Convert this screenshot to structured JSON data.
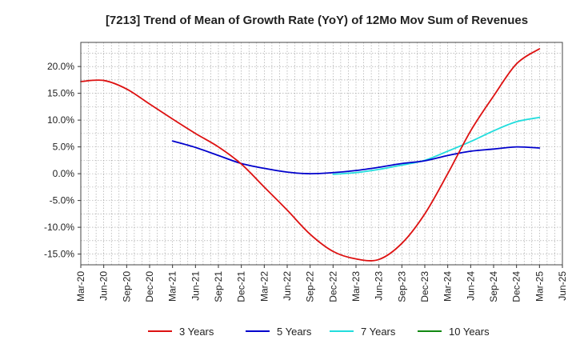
{
  "chart_data": {
    "type": "line",
    "title": "[7213]  Trend of Mean of Growth Rate (YoY) of 12Mo Mov Sum of Revenues",
    "xlabel": "",
    "ylabel": "",
    "ylim": [
      -17,
      24.5
    ],
    "yticks": [
      20,
      15,
      10,
      5,
      0,
      -5,
      -10,
      -15
    ],
    "ytick_labels": [
      "20.0%",
      "15.0%",
      "10.0%",
      "5.0%",
      "0.0%",
      "-5.0%",
      "-10.0%",
      "-15.0%"
    ],
    "x_tick_labels": [
      "Mar-20",
      "Jun-20",
      "Sep-20",
      "Dec-20",
      "Mar-21",
      "Jun-21",
      "Sep-21",
      "Dec-21",
      "Mar-22",
      "Jun-22",
      "Sep-22",
      "Dec-22",
      "Mar-23",
      "Jun-23",
      "Sep-23",
      "Dec-23",
      "Mar-24",
      "Jun-24",
      "Sep-24",
      "Dec-24",
      "Mar-25",
      "Jun-25"
    ],
    "grid": true,
    "legend_position": "bottom",
    "series": [
      {
        "name": "3 Years",
        "color": "#dd1111",
        "points": [
          [
            0,
            17.2
          ],
          [
            1,
            17.4
          ],
          [
            2,
            15.8
          ],
          [
            3,
            13.0
          ],
          [
            4,
            10.2
          ],
          [
            5,
            7.5
          ],
          [
            6,
            5.0
          ],
          [
            7,
            1.8
          ],
          [
            8,
            -2.5
          ],
          [
            9,
            -6.8
          ],
          [
            10,
            -11.3
          ],
          [
            11,
            -14.5
          ],
          [
            12,
            -15.9
          ],
          [
            13,
            -16.0
          ],
          [
            14,
            -13.0
          ],
          [
            15,
            -7.5
          ],
          [
            16,
            0.0
          ],
          [
            17,
            8.0
          ],
          [
            18,
            14.5
          ],
          [
            19,
            20.5
          ],
          [
            20,
            23.3
          ]
        ]
      },
      {
        "name": "5 Years",
        "color": "#0000cc",
        "points": [
          [
            4,
            6.1
          ],
          [
            5,
            4.9
          ],
          [
            6,
            3.4
          ],
          [
            7,
            1.9
          ],
          [
            8,
            1.0
          ],
          [
            9,
            0.3
          ],
          [
            10,
            0.0
          ],
          [
            11,
            0.2
          ],
          [
            12,
            0.6
          ],
          [
            13,
            1.2
          ],
          [
            14,
            1.9
          ],
          [
            15,
            2.4
          ],
          [
            16,
            3.4
          ],
          [
            17,
            4.2
          ],
          [
            18,
            4.6
          ],
          [
            19,
            5.0
          ],
          [
            20,
            4.8
          ]
        ]
      },
      {
        "name": "7 Years",
        "color": "#22dddd",
        "points": [
          [
            11,
            -0.1
          ],
          [
            12,
            0.2
          ],
          [
            13,
            0.8
          ],
          [
            14,
            1.6
          ],
          [
            15,
            2.5
          ],
          [
            16,
            4.2
          ],
          [
            17,
            6.0
          ],
          [
            18,
            8.0
          ],
          [
            19,
            9.7
          ],
          [
            20,
            10.5
          ]
        ]
      },
      {
        "name": "10 Years",
        "color": "#118811",
        "points": []
      }
    ]
  }
}
